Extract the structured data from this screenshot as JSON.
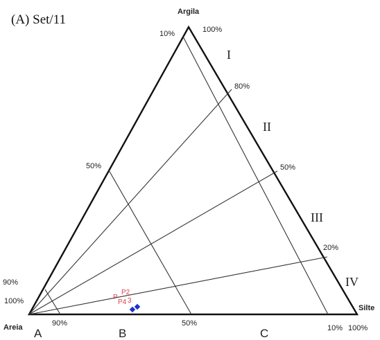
{
  "title": "(A) Set/11",
  "vertices": {
    "top": "Argila",
    "left": "Areia",
    "right": "Silte"
  },
  "percent_labels": {
    "top_left": "10%",
    "top_right": "100%",
    "right_80": "80%",
    "right_50": "50%",
    "right_20": "20%",
    "right_bottom": "100%",
    "left_50": "50%",
    "left_90": "90%",
    "left_100": "100%",
    "bottom_90": "90%",
    "bottom_50": "50%",
    "bottom_10": "10%"
  },
  "classes": [
    "I",
    "II",
    "III",
    "IV"
  ],
  "zones": [
    "A",
    "B",
    "C"
  ],
  "sample_points": [
    "P2",
    "P4",
    "P",
    "3"
  ],
  "colors": {
    "lines": "#111111",
    "point_labels": "#e0404f",
    "markers": "#1a2fd0"
  }
}
